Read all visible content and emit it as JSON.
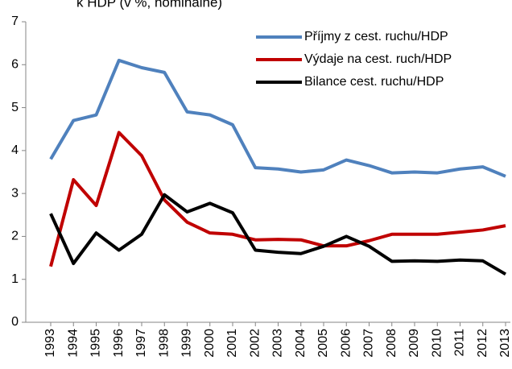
{
  "chart_data": {
    "type": "line",
    "title": "k HDP (v %, nominálně)",
    "categories": [
      "1993",
      "1994",
      "1995",
      "1996",
      "1997",
      "1998",
      "1999",
      "2000",
      "2001",
      "2002",
      "2003",
      "2004",
      "2005",
      "2006",
      "2007",
      "2008",
      "2009",
      "2010",
      "2011",
      "2012",
      "2013"
    ],
    "series": [
      {
        "name": "Příjmy z cest. ruchu/HDP",
        "color": "#4f81bd",
        "values": [
          3.8,
          4.7,
          4.83,
          6.1,
          5.93,
          5.82,
          4.9,
          4.83,
          4.6,
          3.6,
          3.57,
          3.5,
          3.55,
          3.78,
          3.65,
          3.48,
          3.5,
          3.48,
          3.57,
          3.62,
          3.4
        ]
      },
      {
        "name": "Výdaje na cest. ruch/HDP",
        "color": "#c00000",
        "values": [
          1.3,
          3.32,
          2.72,
          4.42,
          3.88,
          2.85,
          2.33,
          2.08,
          2.05,
          1.92,
          1.93,
          1.92,
          1.78,
          1.78,
          1.9,
          2.05,
          2.05,
          2.05,
          2.1,
          2.15,
          2.25
        ]
      },
      {
        "name": "Bilance cest. ruchu/HDP",
        "color": "#000000",
        "values": [
          2.53,
          1.37,
          2.08,
          1.68,
          2.05,
          2.97,
          2.57,
          2.77,
          2.55,
          1.68,
          1.63,
          1.6,
          1.77,
          2.0,
          1.77,
          1.42,
          1.43,
          1.42,
          1.45,
          1.43,
          1.12
        ]
      }
    ],
    "ylim": [
      0,
      7
    ],
    "yticks": [
      0,
      1,
      2,
      3,
      4,
      5,
      6,
      7
    ],
    "legend": "upper right"
  }
}
